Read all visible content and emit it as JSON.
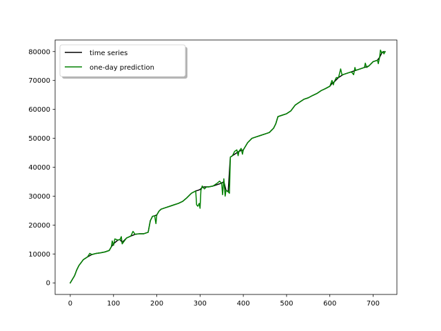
{
  "chart_data": {
    "type": "line",
    "title": "",
    "xlabel": "",
    "ylabel": "",
    "xlim": [
      -35,
      755
    ],
    "ylim": [
      -4000,
      84000
    ],
    "x_ticks": [
      0,
      100,
      200,
      300,
      400,
      500,
      600,
      700
    ],
    "y_ticks": [
      0,
      10000,
      20000,
      30000,
      40000,
      50000,
      60000,
      70000,
      80000
    ],
    "x_tick_labels": [
      "0",
      "100",
      "200",
      "300",
      "400",
      "500",
      "600",
      "700"
    ],
    "y_tick_labels": [
      "0",
      "10000",
      "20000",
      "30000",
      "40000",
      "50000",
      "60000",
      "70000",
      "80000"
    ],
    "grid": false,
    "legend": {
      "placement": "top-left",
      "shadow": true
    },
    "series": [
      {
        "name": "time series",
        "color": "#000000",
        "points": [
          [
            0,
            0
          ],
          [
            10,
            2500
          ],
          [
            15,
            4500
          ],
          [
            20,
            6000
          ],
          [
            30,
            8000
          ],
          [
            40,
            9000
          ],
          [
            50,
            9800
          ],
          [
            60,
            10200
          ],
          [
            70,
            10400
          ],
          [
            80,
            10700
          ],
          [
            90,
            11200
          ],
          [
            95,
            12500
          ],
          [
            100,
            13500
          ],
          [
            110,
            14800
          ],
          [
            115,
            15000
          ],
          [
            120,
            14000
          ],
          [
            130,
            15500
          ],
          [
            140,
            16200
          ],
          [
            150,
            16800
          ],
          [
            160,
            17000
          ],
          [
            170,
            17000
          ],
          [
            180,
            17500
          ],
          [
            185,
            21500
          ],
          [
            190,
            23000
          ],
          [
            195,
            23200
          ],
          [
            200,
            23500
          ],
          [
            205,
            24800
          ],
          [
            210,
            25500
          ],
          [
            220,
            26000
          ],
          [
            230,
            26500
          ],
          [
            240,
            27000
          ],
          [
            250,
            27500
          ],
          [
            260,
            28200
          ],
          [
            270,
            29500
          ],
          [
            280,
            31000
          ],
          [
            290,
            31800
          ],
          [
            295,
            32000
          ],
          [
            300,
            32300
          ],
          [
            305,
            33000
          ],
          [
            310,
            33200
          ],
          [
            320,
            33200
          ],
          [
            330,
            33500
          ],
          [
            340,
            34000
          ],
          [
            350,
            34500
          ],
          [
            355,
            35000
          ],
          [
            360,
            32000
          ],
          [
            365,
            31500
          ],
          [
            370,
            43500
          ],
          [
            375,
            44000
          ],
          [
            380,
            44500
          ],
          [
            390,
            45500
          ],
          [
            400,
            46000
          ],
          [
            410,
            48500
          ],
          [
            420,
            50000
          ],
          [
            430,
            50500
          ],
          [
            440,
            51000
          ],
          [
            450,
            51500
          ],
          [
            460,
            52000
          ],
          [
            470,
            53500
          ],
          [
            475,
            55000
          ],
          [
            480,
            57500
          ],
          [
            490,
            58000
          ],
          [
            500,
            58500
          ],
          [
            510,
            59500
          ],
          [
            520,
            61500
          ],
          [
            530,
            62500
          ],
          [
            540,
            63500
          ],
          [
            550,
            64000
          ],
          [
            560,
            64800
          ],
          [
            570,
            65500
          ],
          [
            580,
            66500
          ],
          [
            590,
            67200
          ],
          [
            600,
            68000
          ],
          [
            605,
            69000
          ],
          [
            610,
            69500
          ],
          [
            620,
            71000
          ],
          [
            630,
            72000
          ],
          [
            640,
            72500
          ],
          [
            650,
            73000
          ],
          [
            660,
            73500
          ],
          [
            670,
            74000
          ],
          [
            680,
            74500
          ],
          [
            690,
            75000
          ],
          [
            700,
            76500
          ],
          [
            710,
            77000
          ],
          [
            715,
            78000
          ],
          [
            720,
            79500
          ],
          [
            725,
            80000
          ]
        ]
      },
      {
        "name": "one-day prediction",
        "color": "#008000",
        "points": [
          [
            0,
            0
          ],
          [
            10,
            2500
          ],
          [
            15,
            4500
          ],
          [
            20,
            6000
          ],
          [
            30,
            8000
          ],
          [
            40,
            9000
          ],
          [
            45,
            10200
          ],
          [
            50,
            9800
          ],
          [
            60,
            10200
          ],
          [
            70,
            10400
          ],
          [
            80,
            10700
          ],
          [
            90,
            11200
          ],
          [
            95,
            12500
          ],
          [
            97,
            14500
          ],
          [
            100,
            13000
          ],
          [
            103,
            15200
          ],
          [
            110,
            14800
          ],
          [
            115,
            15000
          ],
          [
            118,
            16000
          ],
          [
            120,
            13500
          ],
          [
            125,
            14500
          ],
          [
            130,
            15500
          ],
          [
            140,
            16200
          ],
          [
            145,
            17800
          ],
          [
            150,
            16800
          ],
          [
            160,
            17000
          ],
          [
            170,
            17000
          ],
          [
            180,
            17500
          ],
          [
            185,
            21500
          ],
          [
            190,
            23000
          ],
          [
            195,
            23200
          ],
          [
            198,
            20500
          ],
          [
            200,
            23500
          ],
          [
            205,
            24800
          ],
          [
            210,
            25500
          ],
          [
            220,
            26000
          ],
          [
            230,
            26500
          ],
          [
            240,
            27000
          ],
          [
            250,
            27500
          ],
          [
            260,
            28200
          ],
          [
            270,
            29500
          ],
          [
            280,
            31000
          ],
          [
            290,
            31800
          ],
          [
            292,
            27000
          ],
          [
            295,
            26500
          ],
          [
            298,
            27500
          ],
          [
            300,
            25800
          ],
          [
            302,
            32000
          ],
          [
            305,
            33500
          ],
          [
            310,
            32500
          ],
          [
            315,
            33200
          ],
          [
            320,
            33200
          ],
          [
            330,
            33500
          ],
          [
            340,
            34500
          ],
          [
            345,
            35200
          ],
          [
            350,
            34500
          ],
          [
            352,
            30500
          ],
          [
            355,
            36000
          ],
          [
            358,
            30000
          ],
          [
            360,
            32000
          ],
          [
            365,
            31500
          ],
          [
            368,
            31000
          ],
          [
            370,
            43500
          ],
          [
            375,
            44000
          ],
          [
            380,
            45500
          ],
          [
            385,
            46000
          ],
          [
            388,
            44000
          ],
          [
            390,
            45500
          ],
          [
            395,
            46500
          ],
          [
            398,
            44500
          ],
          [
            400,
            46000
          ],
          [
            410,
            48500
          ],
          [
            420,
            50000
          ],
          [
            430,
            50500
          ],
          [
            440,
            51000
          ],
          [
            450,
            51500
          ],
          [
            460,
            52000
          ],
          [
            470,
            53500
          ],
          [
            475,
            55000
          ],
          [
            480,
            57500
          ],
          [
            490,
            58000
          ],
          [
            500,
            58500
          ],
          [
            510,
            59500
          ],
          [
            520,
            61500
          ],
          [
            530,
            62500
          ],
          [
            540,
            63500
          ],
          [
            550,
            64000
          ],
          [
            560,
            64800
          ],
          [
            570,
            65500
          ],
          [
            580,
            66500
          ],
          [
            590,
            67200
          ],
          [
            600,
            68000
          ],
          [
            605,
            70000
          ],
          [
            608,
            68500
          ],
          [
            610,
            69500
          ],
          [
            615,
            71000
          ],
          [
            620,
            71000
          ],
          [
            625,
            74000
          ],
          [
            628,
            72000
          ],
          [
            630,
            72000
          ],
          [
            640,
            72500
          ],
          [
            650,
            73000
          ],
          [
            655,
            72000
          ],
          [
            658,
            74500
          ],
          [
            660,
            73500
          ],
          [
            670,
            74000
          ],
          [
            680,
            74500
          ],
          [
            682,
            76000
          ],
          [
            685,
            74500
          ],
          [
            690,
            75000
          ],
          [
            700,
            76500
          ],
          [
            710,
            77000
          ],
          [
            712,
            75800
          ],
          [
            715,
            78000
          ],
          [
            717,
            80500
          ],
          [
            720,
            79500
          ],
          [
            723,
            80000
          ],
          [
            725,
            79200
          ],
          [
            728,
            80000
          ]
        ]
      }
    ]
  }
}
